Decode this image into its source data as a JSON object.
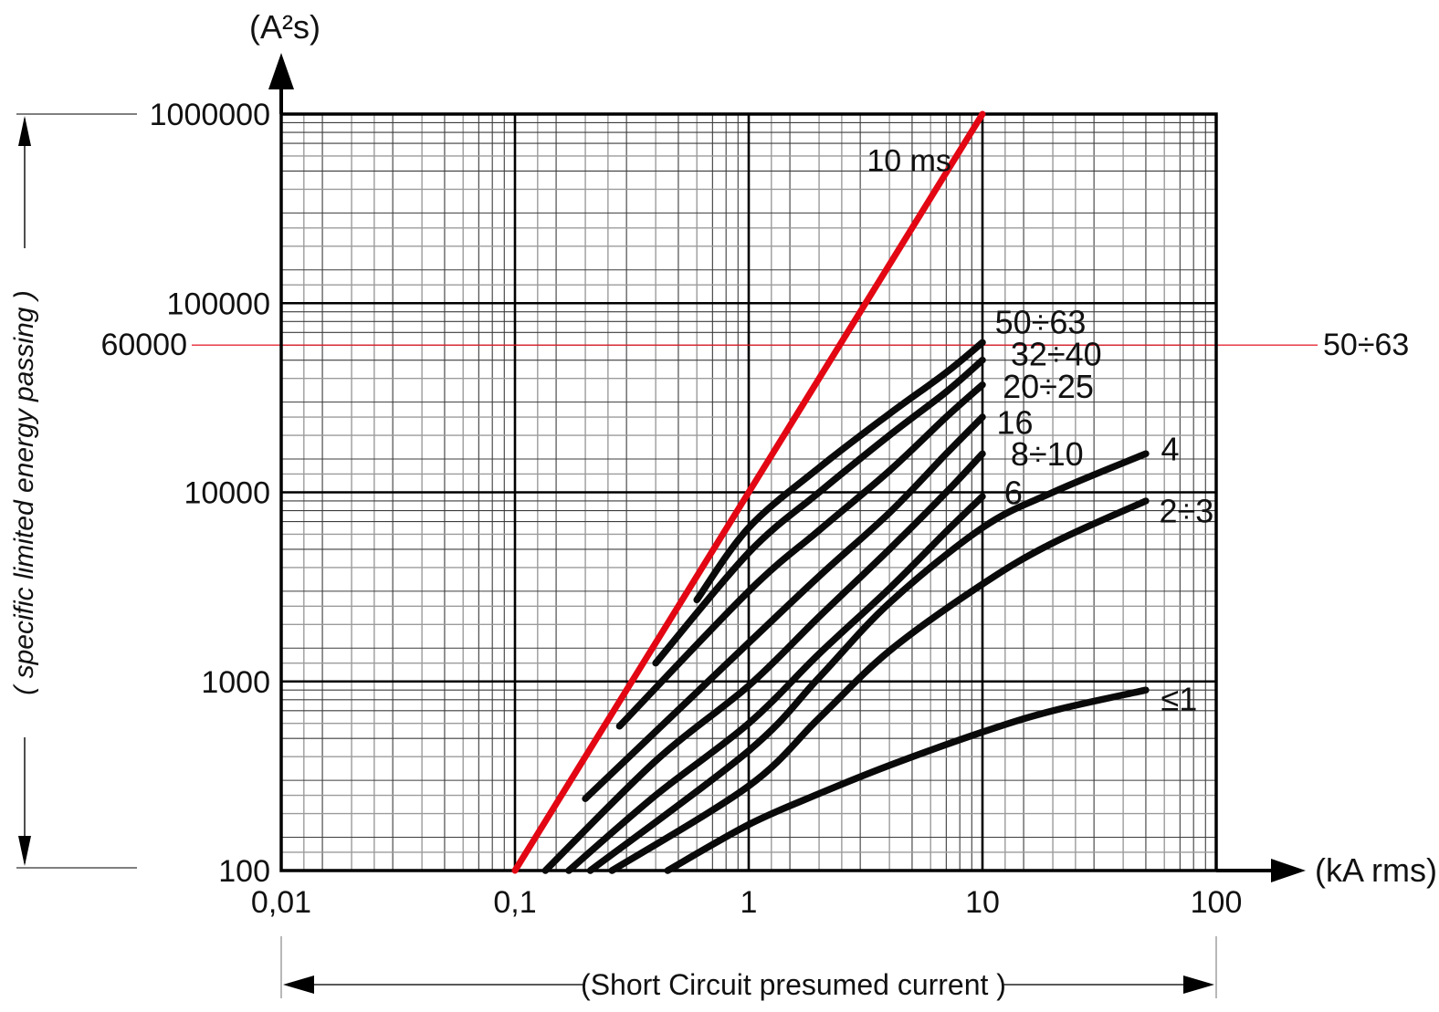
{
  "chart_data": {
    "type": "line",
    "scale": "log-log",
    "title": "(A²s)",
    "x_axis_label": "(kA rms)",
    "y_axis_side_label": "( specific limited energy passing )",
    "bottom_annotation": "(Short Circuit  presumed current )",
    "xlim": [
      0.01,
      100
    ],
    "ylim": [
      100,
      1000000
    ],
    "grid": {
      "on": true,
      "minor_subdivisions": [
        1.25,
        1.5,
        2,
        2.5,
        3,
        4,
        5,
        6,
        7,
        8,
        9
      ],
      "light_subdivisions": [
        1.25,
        2,
        2.5,
        4,
        6
      ]
    },
    "x_ticks": [
      {
        "label": "0,01",
        "value": 0.01
      },
      {
        "label": "0,1",
        "value": 0.1
      },
      {
        "label": "1",
        "value": 1
      },
      {
        "label": "10",
        "value": 10
      },
      {
        "label": "100",
        "value": 100
      }
    ],
    "y_ticks": [
      {
        "label": "100",
        "value": 100
      },
      {
        "label": "1000",
        "value": 1000
      },
      {
        "label": "10000",
        "value": 10000
      },
      {
        "label": "100000",
        "value": 100000
      },
      {
        "label": "1000000",
        "value": 1000000
      }
    ],
    "reference_line": {
      "name": "10 ms",
      "points": [
        [
          0.1,
          100
        ],
        [
          10,
          1000000
        ]
      ],
      "label_at": [
        3.2,
        570000
      ]
    },
    "highlight_level": {
      "value": 60000,
      "left_label": "60000",
      "right_label": "50÷63"
    },
    "series": [
      {
        "name": "50÷63",
        "label_at": [
          11.3,
          80000
        ],
        "points": [
          [
            0.6,
            2700
          ],
          [
            1,
            6500
          ],
          [
            2,
            13500
          ],
          [
            4,
            26000
          ],
          [
            7,
            43000
          ],
          [
            10,
            62000
          ]
        ]
      },
      {
        "name": "32÷40",
        "label_at": [
          13.2,
          54000
        ],
        "points": [
          [
            0.4,
            1250
          ],
          [
            1,
            4800
          ],
          [
            2,
            10000
          ],
          [
            4,
            20000
          ],
          [
            7,
            34000
          ],
          [
            10,
            50000
          ]
        ]
      },
      {
        "name": "20÷25",
        "label_at": [
          12.2,
          36500
        ],
        "points": [
          [
            0.28,
            580
          ],
          [
            1,
            3000
          ],
          [
            2,
            6300
          ],
          [
            4,
            13000
          ],
          [
            7,
            25000
          ],
          [
            10,
            37000
          ]
        ]
      },
      {
        "name": "16",
        "label_at": [
          11.5,
          23500
        ],
        "points": [
          [
            0.2,
            240
          ],
          [
            1,
            1600
          ],
          [
            2,
            3600
          ],
          [
            4,
            7800
          ],
          [
            7,
            16000
          ],
          [
            10,
            25000
          ]
        ]
      },
      {
        "name": "8÷10",
        "label_at": [
          13.2,
          16000
        ],
        "points": [
          [
            0.135,
            100
          ],
          [
            0.4,
            380
          ],
          [
            1,
            950
          ],
          [
            2,
            2200
          ],
          [
            4,
            5000
          ],
          [
            7,
            10000
          ],
          [
            10,
            16000
          ]
        ]
      },
      {
        "name": "6",
        "label_at": [
          12.4,
          10000
        ],
        "points": [
          [
            0.17,
            100
          ],
          [
            0.4,
            250
          ],
          [
            1,
            600
          ],
          [
            2,
            1400
          ],
          [
            4,
            3100
          ],
          [
            7,
            6200
          ],
          [
            10,
            9500
          ]
        ]
      },
      {
        "name": "4",
        "label_at": [
          58,
          17000
        ],
        "points": [
          [
            0.21,
            100
          ],
          [
            1,
            430
          ],
          [
            2,
            1050
          ],
          [
            4,
            2600
          ],
          [
            10,
            6500
          ],
          [
            20,
            10000
          ],
          [
            50,
            16000
          ]
        ]
      },
      {
        "name": "2÷3",
        "label_at": [
          57,
          8000
        ],
        "points": [
          [
            0.26,
            100
          ],
          [
            1,
            280
          ],
          [
            2,
            640
          ],
          [
            4,
            1450
          ],
          [
            10,
            3270
          ],
          [
            20,
            5400
          ],
          [
            50,
            9000
          ]
        ]
      },
      {
        "name": "≤1",
        "label_at": [
          58,
          810
        ],
        "points": [
          [
            0.45,
            100
          ],
          [
            1,
            175
          ],
          [
            2,
            255
          ],
          [
            4,
            360
          ],
          [
            10,
            540
          ],
          [
            20,
            700
          ],
          [
            50,
            900
          ]
        ]
      }
    ],
    "colors": {
      "accent": "#e30613",
      "curve": "#0a0a0a",
      "grid_major": "#000000",
      "grid_minor_dark": "#3c3c3c",
      "grid_minor_light": "#9b9b9b"
    }
  }
}
